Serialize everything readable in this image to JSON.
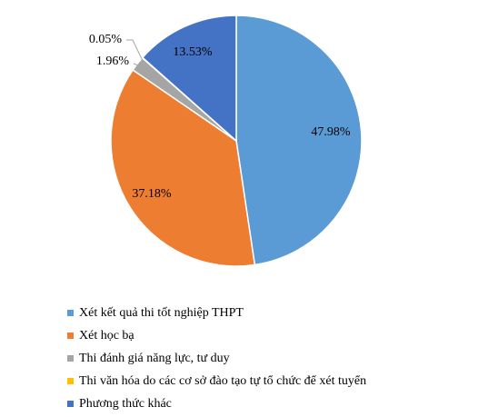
{
  "chart_data": {
    "type": "pie",
    "title": "",
    "legend_position": "bottom",
    "start_angle_deg": 0,
    "direction": "clockwise",
    "slices": [
      {
        "label": "Xét kết quả thi tốt nghiệp THPT",
        "value": 47.98,
        "value_label": "47.98%",
        "color": "#5B9BD5"
      },
      {
        "label": "Xét học bạ",
        "value": 37.18,
        "value_label": "37.18%",
        "color": "#ED7D31"
      },
      {
        "label": "Thi đánh giá năng lực, tư duy",
        "value": 1.96,
        "value_label": "1.96%",
        "color": "#A5A5A5"
      },
      {
        "label": "Thi văn hóa do các cơ sở đào tạo tự tổ chức để xét tuyển",
        "value": 0.05,
        "value_label": "0.05%",
        "color": "#FFC000"
      },
      {
        "label": "Phương thức khác",
        "value": 13.53,
        "value_label": "13.53%",
        "color": "#4472C4"
      }
    ]
  }
}
